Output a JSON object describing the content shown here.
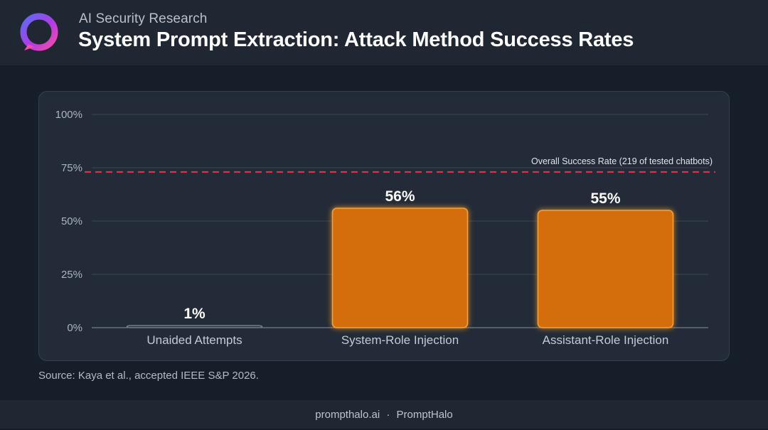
{
  "header": {
    "subtitle": "AI Security Research",
    "title": "System Prompt Extraction: Attack Method Success Rates"
  },
  "logo": {
    "icon": "ring-logo-icon",
    "gradient": [
      "#5b6cf5",
      "#b23ae6",
      "#f04fa3"
    ]
  },
  "chart_data": {
    "type": "bar",
    "categories": [
      "Unaided Attempts",
      "System-Role Injection",
      "Assistant-Role Injection"
    ],
    "values": [
      1,
      56,
      55
    ],
    "value_labels": [
      "1%",
      "56%",
      "55%"
    ],
    "ylim": [
      0,
      100
    ],
    "y_ticks": [
      0,
      25,
      50,
      75,
      100
    ],
    "y_tick_labels": [
      "0%",
      "25%",
      "50%",
      "75%",
      "100%"
    ],
    "grid": true,
    "reference_line": {
      "value": 73,
      "label": "Overall Success Rate (219 of tested chatbots)",
      "color": "#d8353f",
      "style": "dashed"
    },
    "bar_colors": [
      "#2e3845",
      "#d46e0c",
      "#d46e0c"
    ],
    "bar_outline_colors": [
      "#6f7a88",
      "#f3a33c",
      "#f3a33c"
    ]
  },
  "source_note": "Source: Kaya et al., accepted IEEE S&P 2026.",
  "footer": {
    "site": "prompthalo.ai",
    "separator": "·",
    "brand": "PromptHalo"
  }
}
